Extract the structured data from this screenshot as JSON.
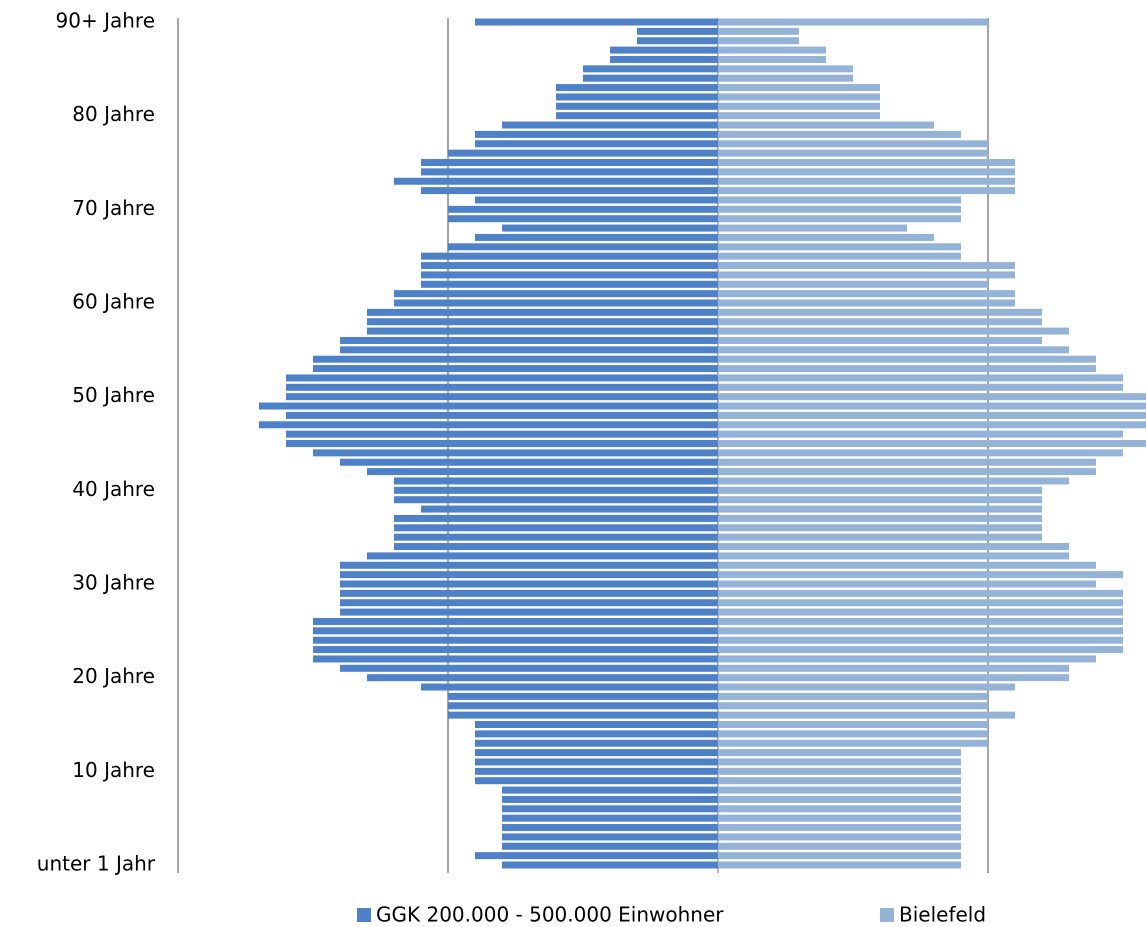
{
  "chart_data": {
    "type": "pyramid",
    "categories": [
      "unter 1 Jahr",
      null,
      null,
      null,
      null,
      null,
      null,
      null,
      null,
      null,
      "10 Jahre",
      null,
      null,
      null,
      null,
      null,
      null,
      null,
      null,
      null,
      "20 Jahre",
      null,
      null,
      null,
      null,
      null,
      null,
      null,
      null,
      null,
      "30 Jahre",
      null,
      null,
      null,
      null,
      null,
      null,
      null,
      null,
      null,
      "40 Jahre",
      null,
      null,
      null,
      null,
      null,
      null,
      null,
      null,
      null,
      "50 Jahre",
      null,
      null,
      null,
      null,
      null,
      null,
      null,
      null,
      null,
      "60 Jahre",
      null,
      null,
      null,
      null,
      null,
      null,
      null,
      null,
      null,
      "70 Jahre",
      null,
      null,
      null,
      null,
      null,
      null,
      null,
      null,
      null,
      "80 Jahre",
      null,
      null,
      null,
      null,
      null,
      null,
      null,
      null,
      null,
      "90+ Jahre"
    ],
    "series": [
      {
        "name": "GGK 200.000 - 500.000 Einwohner",
        "color": "#4f81c9",
        "values": [
          0.8,
          0.9,
          0.8,
          0.8,
          0.8,
          0.8,
          0.8,
          0.8,
          0.8,
          0.9,
          0.9,
          0.9,
          0.9,
          0.9,
          0.9,
          0.9,
          1.0,
          1.0,
          1.0,
          1.1,
          1.3,
          1.4,
          1.5,
          1.5,
          1.5,
          1.5,
          1.5,
          1.4,
          1.4,
          1.4,
          1.4,
          1.4,
          1.4,
          1.3,
          1.2,
          1.2,
          1.2,
          1.2,
          1.1,
          1.2,
          1.2,
          1.2,
          1.3,
          1.4,
          1.5,
          1.6,
          1.6,
          1.7,
          1.6,
          1.7,
          1.6,
          1.6,
          1.6,
          1.5,
          1.5,
          1.4,
          1.4,
          1.3,
          1.3,
          1.3,
          1.2,
          1.2,
          1.1,
          1.1,
          1.1,
          1.1,
          1.0,
          0.9,
          0.8,
          1.0,
          1.0,
          0.9,
          1.1,
          1.2,
          1.1,
          1.1,
          1.0,
          0.9,
          0.9,
          0.8,
          0.6,
          0.6,
          0.6,
          0.6,
          0.5,
          0.5,
          0.4,
          0.4,
          0.3,
          0.3,
          0.9
        ]
      },
      {
        "name": "Bielefeld",
        "color": "#95b3d7",
        "values": [
          0.9,
          0.9,
          0.9,
          0.9,
          0.9,
          0.9,
          0.9,
          0.9,
          0.9,
          0.9,
          0.9,
          0.9,
          0.9,
          1.0,
          1.0,
          1.0,
          1.1,
          1.0,
          1.0,
          1.1,
          1.3,
          1.3,
          1.4,
          1.5,
          1.5,
          1.5,
          1.5,
          1.5,
          1.5,
          1.5,
          1.4,
          1.5,
          1.4,
          1.3,
          1.3,
          1.2,
          1.2,
          1.2,
          1.2,
          1.2,
          1.2,
          1.3,
          1.4,
          1.4,
          1.5,
          1.6,
          1.5,
          1.6,
          1.6,
          1.6,
          1.6,
          1.5,
          1.5,
          1.4,
          1.4,
          1.3,
          1.2,
          1.3,
          1.2,
          1.2,
          1.1,
          1.1,
          1.0,
          1.1,
          1.1,
          0.9,
          0.9,
          0.8,
          0.7,
          0.9,
          0.9,
          0.9,
          1.1,
          1.1,
          1.1,
          1.1,
          1.0,
          1.0,
          0.9,
          0.8,
          0.6,
          0.6,
          0.6,
          0.6,
          0.5,
          0.5,
          0.4,
          0.4,
          0.3,
          0.3,
          1.0
        ]
      }
    ],
    "xlim": [
      -2,
      2
    ],
    "xticks": [
      -2,
      -1,
      0,
      1,
      2
    ],
    "grid": true
  }
}
